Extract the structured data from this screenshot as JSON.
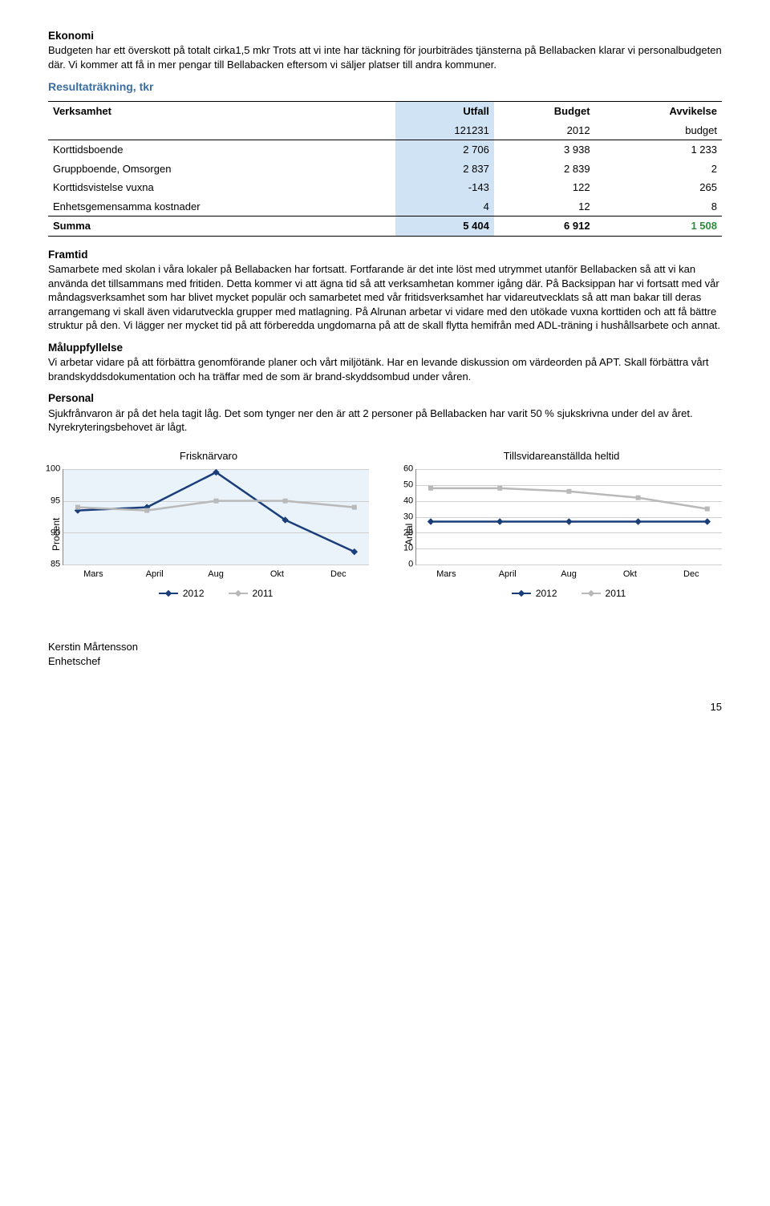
{
  "ekonomi": {
    "heading": "Ekonomi",
    "text": "Budgeten har ett överskott på totalt cirka1,5 mkr Trots att vi inte har täckning för jourbiträdes tjänsterna på Bellabacken klarar vi personalbudgeten där. Vi kommer att få in mer pengar till Bellabacken eftersom vi säljer platser till andra kommuner."
  },
  "resultat_heading": "Resultaträkning, tkr",
  "table": {
    "col_headers": [
      "Verksamhet",
      "Utfall",
      "Budget",
      "Avvikelse"
    ],
    "col_sub": [
      "",
      "121231",
      "2012",
      "budget"
    ],
    "rows": [
      {
        "name": "Korttidsboende",
        "utfall": "2 706",
        "budget": "3 938",
        "avv": "1 233"
      },
      {
        "name": "Gruppboende, Omsorgen",
        "utfall": "2 837",
        "budget": "2 839",
        "avv": "2"
      },
      {
        "name": "Korttidsvistelse vuxna",
        "utfall": "-143",
        "budget": "122",
        "avv": "265"
      },
      {
        "name": "Enhetsgemensamma kostnader",
        "utfall": "4",
        "budget": "12",
        "avv": "8"
      }
    ],
    "sum": {
      "name": "Summa",
      "utfall": "5 404",
      "budget": "6 912",
      "avv": "1 508"
    }
  },
  "framtid": {
    "heading": "Framtid",
    "text": "Samarbete med skolan i våra lokaler på Bellabacken har fortsatt. Fortfarande är det inte löst med utrymmet utanför Bellabacken så att vi kan använda det tillsammans med fritiden. Detta kommer vi att ägna tid så att verksamhetan kommer igång där. På Backsippan har vi fortsatt med vår måndagsverksamhet som har blivet mycket populär och samarbetet med vår fritidsverksamhet har vidareutvecklats så att man bakar till deras arrangemang vi skall även vidarutveckla grupper med matlagning. På Alrunan arbetar vi vidare med den utökade vuxna korttiden och att få bättre struktur på den. Vi lägger ner mycket tid på att förberedda ungdomarna på att de skall flytta hemifrån med ADL-träning i hushållsarbete och annat."
  },
  "malupp": {
    "heading": "Måluppfyllelse",
    "text": "Vi arbetar vidare på att förbättra genomförande planer och vårt miljötänk. Har en levande diskussion om värdeorden på APT. Skall förbättra vårt brandskyddsdokumentation och ha träffar med de som är brand-skyddsombud under våren."
  },
  "personal": {
    "heading": "Personal",
    "text": "Sjukfrånvaron är på det hela tagit låg. Det som tynger ner den är att 2 personer på Bellabacken har varit 50 % sjukskrivna under del av året. Nyrekryteringsbehovet är lågt."
  },
  "chart1": {
    "type": "line",
    "title": "Frisknärvaro",
    "ylabel": "Procent",
    "categories": [
      "Mars",
      "April",
      "Aug",
      "Okt",
      "Dec"
    ],
    "ylim": [
      85,
      100
    ],
    "yticks": [
      85,
      90,
      95,
      100
    ],
    "series": [
      {
        "name": "2012",
        "color": "#1a3e7a",
        "width": 2.5,
        "marker": "diamond",
        "values": [
          93.5,
          94,
          99.5,
          92,
          87
        ]
      },
      {
        "name": "2011",
        "color": "#b9b9b9",
        "width": 2.5,
        "marker": "square",
        "values": [
          94,
          93.5,
          95,
          95,
          94
        ]
      }
    ],
    "background_fill": "#eaf2fa",
    "grid_color": "#cfcfcf"
  },
  "chart2": {
    "type": "line",
    "title": "Tillsvidareanställda heltid",
    "ylabel": "Antal",
    "categories": [
      "Mars",
      "April",
      "Aug",
      "Okt",
      "Dec"
    ],
    "ylim": [
      0,
      60
    ],
    "yticks": [
      0,
      10,
      20,
      30,
      40,
      50,
      60
    ],
    "series": [
      {
        "name": "2012",
        "color": "#1a3e7a",
        "width": 2.5,
        "marker": "diamond",
        "values": [
          27,
          27,
          27,
          27,
          27
        ]
      },
      {
        "name": "2011",
        "color": "#b9b9b9",
        "width": 2.5,
        "marker": "square",
        "values": [
          48,
          48,
          46,
          42,
          35
        ]
      }
    ],
    "background_fill": "#ffffff",
    "grid_color": "#cfcfcf"
  },
  "legend": {
    "s1": "2012",
    "s2": "2011"
  },
  "signature": {
    "name": "Kerstin Mårtensson",
    "title": "Enhetschef"
  },
  "page": "15"
}
